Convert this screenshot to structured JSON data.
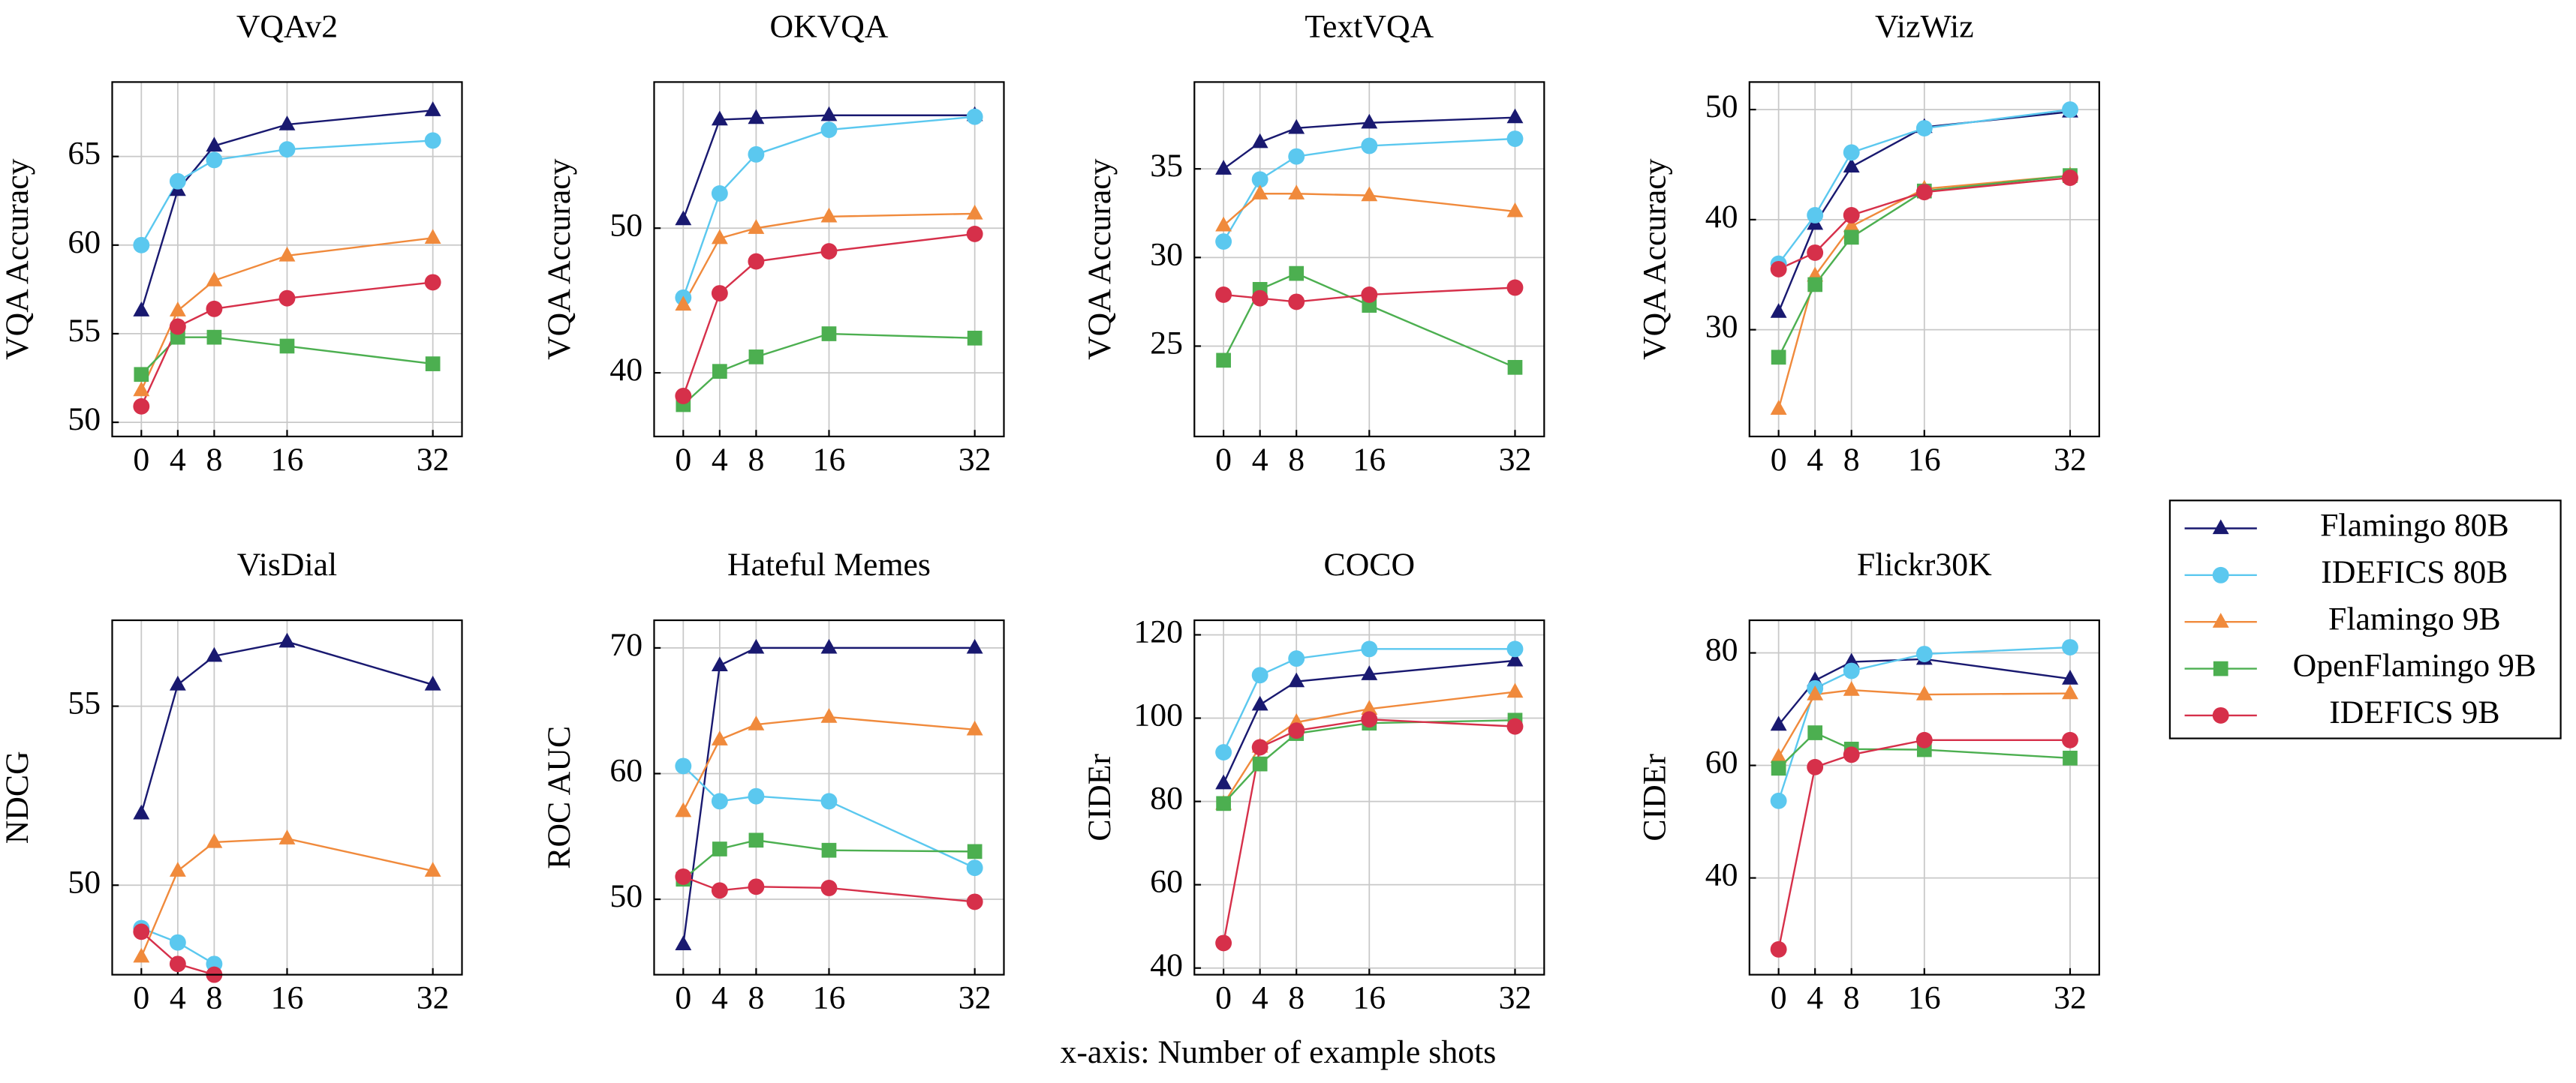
{
  "chart_data": [
    {
      "type": "line",
      "title": "VQAv2",
      "ylabel": "VQA Accuracy",
      "x": [
        0,
        4,
        8,
        16,
        32
      ],
      "xlim": [
        -3.2,
        35.2
      ],
      "xticks": [
        0,
        4,
        8,
        16,
        32
      ],
      "ylim": [
        49.2,
        69.2
      ],
      "yticks": [
        50,
        55,
        60,
        65
      ],
      "grid": true,
      "series": [
        {
          "name": "Flamingo 80B",
          "color": "#191970",
          "marker": "triangle",
          "values": [
            56.3,
            63.1,
            65.6,
            66.8,
            67.6
          ]
        },
        {
          "name": "IDEFICS 80B",
          "color": "#5bc8ef",
          "marker": "circle",
          "values": [
            60.0,
            63.6,
            64.8,
            65.4,
            65.9
          ]
        },
        {
          "name": "Flamingo 9B",
          "color": "#f08a3c",
          "marker": "triangle",
          "values": [
            51.8,
            56.3,
            58.0,
            59.4,
            60.4
          ]
        },
        {
          "name": "OpenFlamingo 9B",
          "color": "#4caf50",
          "marker": "square",
          "values": [
            52.7,
            54.8,
            54.8,
            54.3,
            53.3
          ]
        },
        {
          "name": "IDEFICS 9B",
          "color": "#d6304a",
          "marker": "circle",
          "values": [
            50.9,
            55.4,
            56.4,
            57.0,
            57.9
          ]
        }
      ]
    },
    {
      "type": "line",
      "title": "OKVQA",
      "ylabel": "VQA Accuracy",
      "x": [
        0,
        4,
        8,
        16,
        32
      ],
      "xlim": [
        -3.2,
        35.2
      ],
      "xticks": [
        0,
        4,
        8,
        16,
        32
      ],
      "ylim": [
        35.6,
        60.1
      ],
      "yticks": [
        40,
        50
      ],
      "grid": true,
      "series": [
        {
          "name": "Flamingo 80B",
          "color": "#191970",
          "marker": "triangle",
          "values": [
            50.6,
            57.5,
            57.6,
            57.8,
            57.8
          ]
        },
        {
          "name": "IDEFICS 80B",
          "color": "#5bc8ef",
          "marker": "circle",
          "values": [
            45.2,
            52.4,
            55.1,
            56.8,
            57.7
          ]
        },
        {
          "name": "Flamingo 9B",
          "color": "#f08a3c",
          "marker": "triangle",
          "values": [
            44.7,
            49.3,
            50.0,
            50.8,
            51.0
          ]
        },
        {
          "name": "OpenFlamingo 9B",
          "color": "#4caf50",
          "marker": "square",
          "values": [
            37.8,
            40.1,
            41.1,
            42.7,
            42.4
          ]
        },
        {
          "name": "IDEFICS 9B",
          "color": "#d6304a",
          "marker": "circle",
          "values": [
            38.4,
            45.5,
            47.7,
            48.4,
            49.6
          ]
        }
      ]
    },
    {
      "type": "line",
      "title": "TextVQA",
      "ylabel": "VQA Accuracy",
      "x": [
        0,
        4,
        8,
        16,
        32
      ],
      "xlim": [
        -3.2,
        35.2
      ],
      "xticks": [
        0,
        4,
        8,
        16,
        32
      ],
      "ylim": [
        19.9,
        39.9
      ],
      "yticks": [
        25,
        30,
        35
      ],
      "grid": true,
      "series": [
        {
          "name": "Flamingo 80B",
          "color": "#191970",
          "marker": "triangle",
          "values": [
            35.0,
            36.5,
            37.3,
            37.6,
            37.9
          ]
        },
        {
          "name": "IDEFICS 80B",
          "color": "#5bc8ef",
          "marker": "circle",
          "values": [
            30.9,
            34.4,
            35.7,
            36.3,
            36.7
          ]
        },
        {
          "name": "Flamingo 9B",
          "color": "#f08a3c",
          "marker": "triangle",
          "values": [
            31.8,
            33.6,
            33.6,
            33.5,
            32.6
          ]
        },
        {
          "name": "OpenFlamingo 9B",
          "color": "#4caf50",
          "marker": "square",
          "values": [
            24.2,
            28.2,
            29.1,
            27.3,
            23.8
          ]
        },
        {
          "name": "IDEFICS 9B",
          "color": "#d6304a",
          "marker": "circle",
          "values": [
            27.9,
            27.7,
            27.5,
            27.9,
            28.3
          ]
        }
      ]
    },
    {
      "type": "line",
      "title": "VizWiz",
      "ylabel": "VQA Accuracy",
      "x": [
        0,
        4,
        8,
        16,
        32
      ],
      "xlim": [
        -3.2,
        35.2
      ],
      "xticks": [
        0,
        4,
        8,
        16,
        32
      ],
      "ylim": [
        20.3,
        52.5
      ],
      "yticks": [
        30,
        40,
        50
      ],
      "grid": true,
      "series": [
        {
          "name": "Flamingo 80B",
          "color": "#191970",
          "marker": "triangle",
          "values": [
            31.6,
            39.6,
            44.8,
            48.4,
            49.8
          ]
        },
        {
          "name": "IDEFICS 80B",
          "color": "#5bc8ef",
          "marker": "circle",
          "values": [
            36.0,
            40.4,
            46.1,
            48.3,
            50.0
          ]
        },
        {
          "name": "Flamingo 9B",
          "color": "#f08a3c",
          "marker": "triangle",
          "values": [
            22.8,
            34.9,
            39.4,
            42.8,
            44.0
          ]
        },
        {
          "name": "OpenFlamingo 9B",
          "color": "#4caf50",
          "marker": "square",
          "values": [
            27.5,
            34.1,
            38.4,
            42.6,
            44.0
          ]
        },
        {
          "name": "IDEFICS 9B",
          "color": "#d6304a",
          "marker": "circle",
          "values": [
            35.5,
            37.0,
            40.4,
            42.5,
            43.8
          ]
        }
      ]
    },
    {
      "type": "line",
      "title": "VisDial",
      "ylabel": "NDCG",
      "x": [
        0,
        4,
        8,
        16,
        32
      ],
      "xlim": [
        -3.2,
        35.2
      ],
      "xticks": [
        0,
        4,
        8,
        16,
        32
      ],
      "ylim": [
        47.5,
        57.4
      ],
      "yticks": [
        50,
        55
      ],
      "grid": true,
      "series": [
        {
          "name": "Flamingo 80B",
          "color": "#191970",
          "marker": "triangle",
          "values": [
            52.0,
            55.6,
            56.4,
            56.8,
            55.6
          ]
        },
        {
          "name": "IDEFICS 80B",
          "color": "#5bc8ef",
          "marker": "circle",
          "values": [
            48.8,
            48.4,
            47.8,
            null,
            null
          ]
        },
        {
          "name": "Flamingo 9B",
          "color": "#f08a3c",
          "marker": "triangle",
          "values": [
            48.0,
            50.4,
            51.2,
            51.3,
            50.4
          ]
        },
        {
          "name": "IDEFICS 9B",
          "color": "#d6304a",
          "marker": "circle",
          "values": [
            48.7,
            47.8,
            47.5,
            null,
            null
          ]
        }
      ]
    },
    {
      "type": "line",
      "title": "Hateful Memes",
      "ylabel": "ROC AUC",
      "x": [
        0,
        4,
        8,
        16,
        32
      ],
      "xlim": [
        -3.2,
        35.2
      ],
      "xticks": [
        0,
        4,
        8,
        16,
        32
      ],
      "ylim": [
        44.0,
        72.2
      ],
      "yticks": [
        50,
        60,
        70
      ],
      "grid": true,
      "series": [
        {
          "name": "Flamingo 80B",
          "color": "#191970",
          "marker": "triangle",
          "values": [
            46.4,
            68.6,
            70.0,
            70.0,
            70.0
          ]
        },
        {
          "name": "IDEFICS 80B",
          "color": "#5bc8ef",
          "marker": "circle",
          "values": [
            60.6,
            57.8,
            58.2,
            57.8,
            52.5
          ]
        },
        {
          "name": "Flamingo 9B",
          "color": "#f08a3c",
          "marker": "triangle",
          "values": [
            57.0,
            62.7,
            63.9,
            64.5,
            63.5
          ]
        },
        {
          "name": "OpenFlamingo 9B",
          "color": "#4caf50",
          "marker": "square",
          "values": [
            51.6,
            54.0,
            54.7,
            53.9,
            53.8
          ]
        },
        {
          "name": "IDEFICS 9B",
          "color": "#d6304a",
          "marker": "circle",
          "values": [
            51.8,
            50.7,
            51.0,
            50.9,
            49.8
          ]
        }
      ]
    },
    {
      "type": "line",
      "title": "COCO",
      "ylabel": "CIDEr",
      "x": [
        0,
        4,
        8,
        16,
        32
      ],
      "xlim": [
        -3.2,
        35.2
      ],
      "xticks": [
        0,
        4,
        8,
        16,
        32
      ],
      "ylim": [
        38.4,
        123.5
      ],
      "yticks": [
        40,
        60,
        80,
        100,
        120
      ],
      "grid": true,
      "series": [
        {
          "name": "Flamingo 80B",
          "color": "#191970",
          "marker": "triangle",
          "values": [
            84.3,
            103.2,
            108.8,
            110.5,
            113.8
          ]
        },
        {
          "name": "IDEFICS 80B",
          "color": "#5bc8ef",
          "marker": "circle",
          "values": [
            91.8,
            110.3,
            114.3,
            116.6,
            116.6
          ]
        },
        {
          "name": "Flamingo 9B",
          "color": "#f08a3c",
          "marker": "triangle",
          "values": [
            79.4,
            93.1,
            99.0,
            102.2,
            106.3
          ]
        },
        {
          "name": "OpenFlamingo 9B",
          "color": "#4caf50",
          "marker": "square",
          "values": [
            79.5,
            89.0,
            96.3,
            98.8,
            99.5
          ]
        },
        {
          "name": "IDEFICS 9B",
          "color": "#d6304a",
          "marker": "circle",
          "values": [
            46.0,
            93.0,
            97.0,
            99.7,
            98.0
          ]
        }
      ]
    },
    {
      "type": "line",
      "title": "Flickr30K",
      "ylabel": "CIDEr",
      "x": [
        0,
        4,
        8,
        16,
        32
      ],
      "xlim": [
        -3.2,
        35.2
      ],
      "xticks": [
        0,
        4,
        8,
        16,
        32
      ],
      "ylim": [
        22.8,
        85.8
      ],
      "yticks": [
        40,
        60,
        80
      ],
      "grid": true,
      "series": [
        {
          "name": "Flamingo 80B",
          "color": "#191970",
          "marker": "triangle",
          "values": [
            67.2,
            75.1,
            78.4,
            78.9,
            75.4
          ]
        },
        {
          "name": "IDEFICS 80B",
          "color": "#5bc8ef",
          "marker": "circle",
          "values": [
            53.7,
            73.7,
            76.8,
            79.8,
            81.0
          ]
        },
        {
          "name": "Flamingo 9B",
          "color": "#f08a3c",
          "marker": "triangle",
          "values": [
            61.5,
            72.6,
            73.4,
            72.6,
            72.8
          ]
        },
        {
          "name": "OpenFlamingo 9B",
          "color": "#4caf50",
          "marker": "square",
          "values": [
            59.5,
            65.8,
            62.9,
            62.8,
            61.3
          ]
        },
        {
          "name": "IDEFICS 9B",
          "color": "#d6304a",
          "marker": "circle",
          "values": [
            27.3,
            59.7,
            61.9,
            64.5,
            64.5
          ]
        }
      ]
    }
  ],
  "caption": "x-axis: Number of example shots"
}
